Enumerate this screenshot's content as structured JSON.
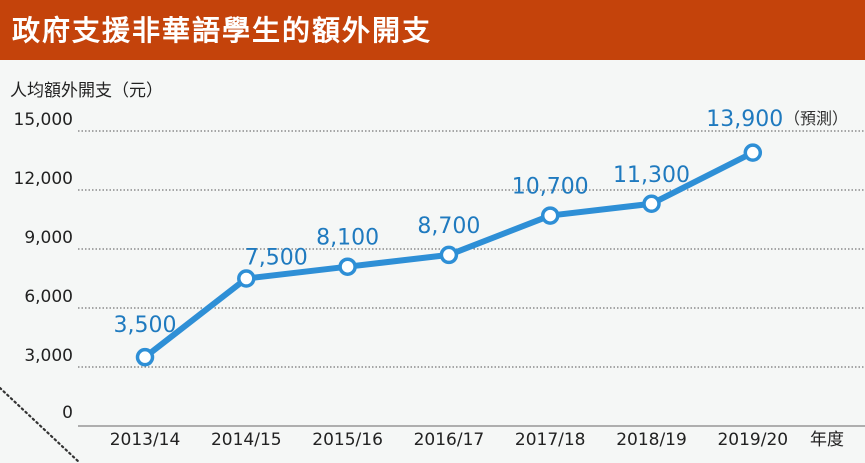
{
  "title": "政府支援非華語學生的額外開支",
  "colors": {
    "title_bar": "#c4430b",
    "line": "#2e8fd6",
    "label": "#1f7abf",
    "background": "#f5f7f6"
  },
  "chart_data": {
    "type": "line",
    "ylabel": "人均額外開支（元）",
    "xlabel": "年度",
    "categories": [
      "2013/14",
      "2014/15",
      "2015/16",
      "2016/17",
      "2017/18",
      "2018/19",
      "2019/20"
    ],
    "values": [
      3500,
      7500,
      8100,
      8700,
      10700,
      11300,
      13900
    ],
    "data_labels": [
      "3,500",
      "7,500",
      "8,100",
      "8,700",
      "10,700",
      "11,300",
      "13,900"
    ],
    "annotation": "（預測）",
    "ylim": [
      0,
      15000
    ],
    "yticks": [
      0,
      3000,
      6000,
      9000,
      12000,
      15000
    ],
    "ytick_labels": [
      "0",
      "3,000",
      "6,000",
      "9,000",
      "12,000",
      "15,000"
    ],
    "grid": true
  }
}
